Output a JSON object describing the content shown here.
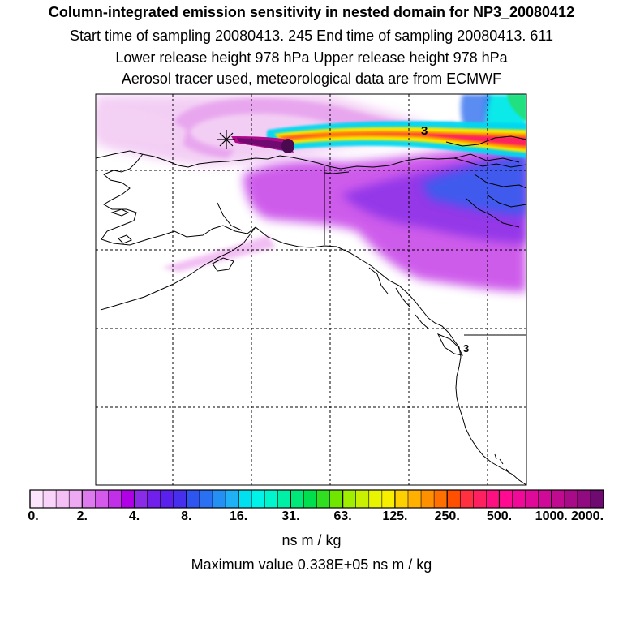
{
  "header": {
    "title": "Column-integrated emission sensitivity in nested domain for NP3_20080412",
    "line_sampling": "Start time of sampling 20080413.   245     End time of sampling 20080413.   611",
    "line_release": "Lower release height  978 hPa        Upper release height  978 hPa",
    "line_tracer": "Aerosol tracer used, meteorological data are from ECMWF"
  },
  "map": {
    "contour_label": "3",
    "release_marker": "star-marker",
    "colors": {
      "land_outline": "#000000",
      "grid": "#000000"
    }
  },
  "colorbar": {
    "tick_labels": [
      "0.",
      "2.",
      "4.",
      "8.",
      "16.",
      "31.",
      "63.",
      "125.",
      "250.",
      "500.",
      "1000.",
      "2000."
    ],
    "colors": [
      "#fde6fd",
      "#f9d3f9",
      "#f4bff4",
      "#eda9f1",
      "#dd7bee",
      "#d35aea",
      "#c22fe8",
      "#b000e6",
      "#8a2be8",
      "#7020ea",
      "#5a20ec",
      "#4630ee",
      "#2f55f0",
      "#2a70f2",
      "#2490f3",
      "#20b0f5",
      "#00e0f0",
      "#00f2e8",
      "#00f5cc",
      "#00f0a8",
      "#00e878",
      "#00e04e",
      "#30e020",
      "#70e600",
      "#a0ee00",
      "#c8f000",
      "#e8f400",
      "#f8ee00",
      "#ffd000",
      "#ffb000",
      "#ff9000",
      "#ff7000",
      "#ff5000",
      "#ff3040",
      "#ff2060",
      "#ff1080",
      "#ff0a90",
      "#f00a98",
      "#e00a98",
      "#d00a98",
      "#c00a90",
      "#a80a88",
      "#900a80",
      "#6e0a70"
    ],
    "units": "ns m / kg",
    "max_value_text": "Maximum value  0.338E+05 ns m / kg"
  }
}
